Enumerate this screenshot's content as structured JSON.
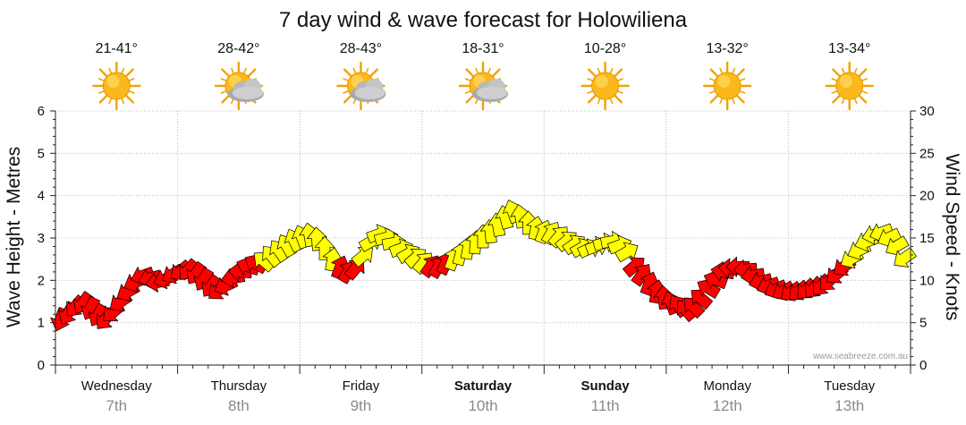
{
  "chart_data": {
    "type": "wind-wave-forecast",
    "title": "7 day wind & wave forecast for Holowiliena",
    "ylabel_left": "Wave Height - Metres",
    "ylabel_right": "Wind Speed - Knots",
    "ylim_left": [
      0,
      6
    ],
    "ylim_right": [
      0,
      30
    ],
    "left_ticks": [
      "0",
      "1",
      "2",
      "3",
      "4",
      "5",
      "6"
    ],
    "right_ticks": [
      "0",
      "5",
      "10",
      "15",
      "20",
      "25",
      "30"
    ],
    "grid": "dotted vertical at day boundaries, dotted horizontal at each metre",
    "watermark": "www.seabreeze.com.au",
    "days": [
      {
        "name": "Wednesday",
        "date": "7th",
        "temp": "21-41°",
        "weather": "sunny",
        "bold": false
      },
      {
        "name": "Thursday",
        "date": "8th",
        "temp": "28-42°",
        "weather": "partly-cloudy",
        "bold": false
      },
      {
        "name": "Friday",
        "date": "9th",
        "temp": "28-43°",
        "weather": "partly-cloudy",
        "bold": false
      },
      {
        "name": "Saturday",
        "date": "10th",
        "temp": "18-31°",
        "weather": "partly-cloudy",
        "bold": true
      },
      {
        "name": "Sunday",
        "date": "11th",
        "temp": "10-28°",
        "weather": "sunny",
        "bold": true
      },
      {
        "name": "Monday",
        "date": "12th",
        "temp": "13-32°",
        "weather": "sunny",
        "bold": false
      },
      {
        "name": "Tuesday",
        "date": "13th",
        "temp": "13-34°",
        "weather": "sunny",
        "bold": false
      }
    ],
    "wind_knots": [
      5.5,
      6.2,
      7.0,
      7.4,
      6.8,
      6.0,
      5.5,
      6.3,
      7.5,
      8.7,
      9.8,
      10.6,
      10.3,
      9.8,
      10.2,
      10.8,
      11.2,
      11.3,
      10.9,
      10.2,
      9.4,
      8.9,
      9.4,
      10.3,
      11.0,
      11.6,
      11.9,
      12.2,
      12.8,
      13.4,
      14.0,
      14.6,
      15.0,
      15.2,
      14.7,
      13.6,
      12.3,
      11.4,
      10.9,
      11.3,
      12.8,
      14.5,
      15.4,
      15.0,
      14.4,
      13.7,
      13.1,
      12.6,
      12.0,
      11.6,
      11.5,
      11.9,
      12.4,
      13.0,
      13.7,
      14.3,
      15.0,
      15.6,
      16.4,
      17.3,
      18.0,
      17.4,
      16.6,
      16.0,
      15.6,
      15.5,
      15.1,
      14.6,
      14.2,
      13.8,
      13.7,
      14.0,
      14.4,
      14.6,
      14.1,
      13.3,
      11.6,
      10.6,
      9.5,
      8.5,
      7.8,
      7.2,
      6.9,
      6.4,
      6.8,
      7.8,
      9.0,
      10.0,
      11.0,
      11.4,
      11.6,
      11.3,
      10.6,
      9.9,
      9.4,
      9.0,
      8.8,
      8.7,
      8.8,
      9.0,
      9.2,
      9.5,
      10.0,
      10.8,
      11.7,
      12.6,
      13.6,
      14.6,
      15.4,
      15.7,
      15.1,
      14.1,
      12.7
    ],
    "wind_direction_deg": [
      20,
      30,
      40,
      35,
      25,
      30,
      40,
      50,
      55,
      60,
      65,
      70,
      75,
      80,
      70,
      60,
      50,
      40,
      35,
      30,
      35,
      50,
      65,
      80,
      95,
      110,
      120,
      130,
      140,
      145,
      150,
      155,
      160,
      170,
      175,
      180,
      190,
      200,
      210,
      220,
      230,
      240,
      250,
      255,
      260,
      250,
      240,
      230,
      220,
      215,
      210,
      205,
      200,
      195,
      190,
      185,
      180,
      175,
      170,
      165,
      160,
      170,
      180,
      190,
      200,
      210,
      220,
      230,
      235,
      240,
      245,
      250,
      255,
      260,
      250,
      240,
      230,
      215,
      200,
      190,
      175,
      160,
      145,
      140,
      135,
      130,
      120,
      110,
      100,
      95,
      90,
      85,
      80,
      75,
      70,
      65,
      60,
      55,
      50,
      45,
      40,
      40,
      45,
      50,
      55,
      60,
      65,
      70,
      75,
      70,
      65,
      60,
      55
    ]
  }
}
